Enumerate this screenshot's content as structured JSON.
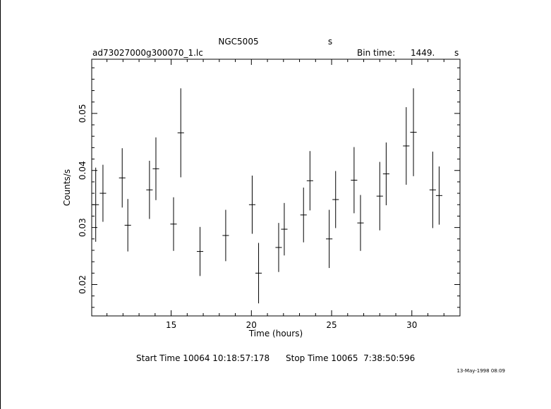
{
  "chart_data": {
    "type": "scatter",
    "title": "NGC5005",
    "title_suffix": "s",
    "filename": "ad73027000g300070_1.lc",
    "bin_time_label": "Bin time:",
    "bin_time_value": "1449.",
    "bin_time_unit": "s",
    "xlabel": "Time (hours)",
    "ylabel": "Counts/s",
    "xlim": [
      10.05,
      33.0
    ],
    "ylim": [
      0.0145,
      0.0595
    ],
    "xticks": [
      15,
      20,
      25,
      30
    ],
    "yticks": [
      0.02,
      0.03,
      0.04,
      0.05
    ],
    "xtick_labels": [
      "15",
      "20",
      "25",
      "30"
    ],
    "ytick_labels": [
      "0.02",
      "0.03",
      "0.04",
      "0.05"
    ],
    "grid": false,
    "points": [
      {
        "x": 10.3,
        "y": 0.034,
        "xerr": 0.2,
        "yerr": 0.0065
      },
      {
        "x": 10.75,
        "y": 0.036,
        "xerr": 0.2,
        "yerr": 0.005
      },
      {
        "x": 11.95,
        "y": 0.0387,
        "xerr": 0.2,
        "yerr": 0.0052
      },
      {
        "x": 12.3,
        "y": 0.0304,
        "xerr": 0.2,
        "yerr": 0.0046
      },
      {
        "x": 13.65,
        "y": 0.0366,
        "xerr": 0.2,
        "yerr": 0.0051
      },
      {
        "x": 14.05,
        "y": 0.0403,
        "xerr": 0.2,
        "yerr": 0.0055
      },
      {
        "x": 15.15,
        "y": 0.0306,
        "xerr": 0.2,
        "yerr": 0.0047
      },
      {
        "x": 15.6,
        "y": 0.0466,
        "xerr": 0.2,
        "yerr": 0.0078
      },
      {
        "x": 16.8,
        "y": 0.0258,
        "xerr": 0.2,
        "yerr": 0.0043
      },
      {
        "x": 18.4,
        "y": 0.0286,
        "xerr": 0.2,
        "yerr": 0.0045
      },
      {
        "x": 20.05,
        "y": 0.034,
        "xerr": 0.2,
        "yerr": 0.0051
      },
      {
        "x": 20.45,
        "y": 0.022,
        "xerr": 0.2,
        "yerr": 0.0053
      },
      {
        "x": 21.7,
        "y": 0.0265,
        "xerr": 0.2,
        "yerr": 0.0043
      },
      {
        "x": 22.05,
        "y": 0.0297,
        "xerr": 0.2,
        "yerr": 0.0046
      },
      {
        "x": 23.25,
        "y": 0.0322,
        "xerr": 0.2,
        "yerr": 0.0048
      },
      {
        "x": 23.65,
        "y": 0.0382,
        "xerr": 0.2,
        "yerr": 0.0052
      },
      {
        "x": 24.85,
        "y": 0.028,
        "xerr": 0.2,
        "yerr": 0.0051
      },
      {
        "x": 25.25,
        "y": 0.0349,
        "xerr": 0.2,
        "yerr": 0.005
      },
      {
        "x": 26.4,
        "y": 0.0383,
        "xerr": 0.2,
        "yerr": 0.0058
      },
      {
        "x": 26.8,
        "y": 0.0308,
        "xerr": 0.2,
        "yerr": 0.0049
      },
      {
        "x": 28.0,
        "y": 0.0355,
        "xerr": 0.2,
        "yerr": 0.006
      },
      {
        "x": 28.4,
        "y": 0.0394,
        "xerr": 0.2,
        "yerr": 0.0055
      },
      {
        "x": 29.65,
        "y": 0.0443,
        "xerr": 0.2,
        "yerr": 0.0068
      },
      {
        "x": 30.1,
        "y": 0.0467,
        "xerr": 0.2,
        "yerr": 0.0077
      },
      {
        "x": 31.3,
        "y": 0.0366,
        "xerr": 0.2,
        "yerr": 0.0067
      },
      {
        "x": 31.7,
        "y": 0.0356,
        "xerr": 0.2,
        "yerr": 0.0051
      }
    ],
    "start_time": "Start Time 10064 10:18:57:178",
    "stop_time": "Stop Time 10065  7:38:50:596",
    "date_stamp": "13-May-1998 08:09"
  }
}
